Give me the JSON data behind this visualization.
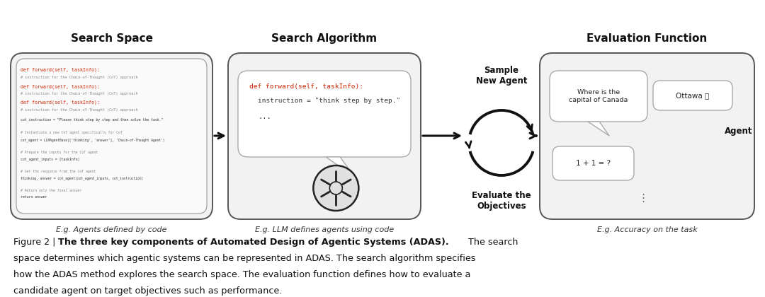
{
  "title_search_space": "Search Space",
  "title_search_algo": "Search Algorithm",
  "title_eval_func": "Evaluation Function",
  "label_agents_by_code": "E.g. Agents defined by code",
  "label_llm_defines": "E.g. LLM defines agents using code",
  "label_accuracy": "E.g. Accuracy on the task",
  "label_sample_new_agent": "Sample\nNew Agent",
  "label_evaluate_objectives": "Evaluate the\nObjectives",
  "bubble1_text": "Where is the\ncapital of Canada",
  "bubble2_text": "Ottawa ✅",
  "bubble3_text": "1 + 1 = ?",
  "label_agent": "Agent",
  "bg_color": "#ffffff",
  "arrow_color": "#111111",
  "box_fc": "#f2f2f2",
  "box_ec": "#555555",
  "caption_line1_normal": "Figure 2 | ",
  "caption_line1_bold": "The three key components of Automated Design of Agentic Systems (ADAS).",
  "caption_line1_tail": " The search",
  "caption_line2": "space determines which agentic systems can be represented in ADAS. The search algorithm specifies",
  "caption_line3": "how the ADAS method explores the search space. The evaluation function defines how to evaluate a",
  "caption_line4": "candidate agent on target objectives such as performance.",
  "code_line1_color": "#cc2200",
  "code_line2_color": "#444444",
  "code_line3_color": "#444444"
}
